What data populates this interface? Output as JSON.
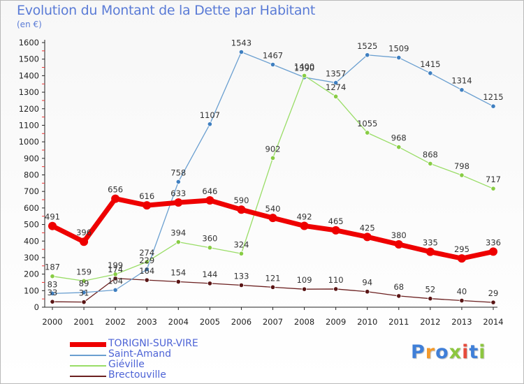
{
  "title": "Evolution du Montant de la Dette par Habitant",
  "unit_label": "(en €)",
  "logo": {
    "text": "Proxiti",
    "colors": [
      "#3f7fd8",
      "#f39a2b",
      "#3f7fd8",
      "#8cc63f",
      "#e64b3c",
      "#3f7fd8",
      "#8cc63f"
    ]
  },
  "chart_data": {
    "type": "line",
    "title": "Evolution du Montant de la Dette par Habitant",
    "ylabel": "(en €)",
    "xlabel": "",
    "x": [
      "2000",
      "2001",
      "2002",
      "2003",
      "2004",
      "2005",
      "2006",
      "2007",
      "2008",
      "2009",
      "2010",
      "2011",
      "2012",
      "2013",
      "2014"
    ],
    "ylim": [
      0,
      1600
    ],
    "yticks": [
      0,
      100,
      200,
      300,
      400,
      500,
      600,
      700,
      800,
      900,
      1000,
      1100,
      1200,
      1300,
      1400,
      1500,
      1600
    ],
    "grid": false,
    "legend_position": "bottom-left",
    "series": [
      {
        "name": "TORIGNI-SUR-VIRE",
        "color": "#ee0000",
        "values": [
          491,
          396,
          656,
          616,
          633,
          646,
          590,
          540,
          492,
          465,
          425,
          380,
          335,
          295,
          336
        ]
      },
      {
        "name": "Saint-Amand",
        "color": "#6a9fd0",
        "values": [
          83,
          89,
          104,
          229,
          758,
          1107,
          1543,
          1467,
          1390,
          1357,
          1525,
          1509,
          1415,
          1314,
          1215
        ]
      },
      {
        "name": "Giéville",
        "color": "#99dd66",
        "values": [
          187,
          159,
          199,
          274,
          394,
          360,
          324,
          902,
          1400,
          1274,
          1055,
          968,
          868,
          798,
          717
        ]
      },
      {
        "name": "Brectouville",
        "color": "#6b1f1f",
        "values": [
          33,
          31,
          174,
          164,
          154,
          144,
          133,
          121,
          109,
          110,
          94,
          68,
          52,
          40,
          29
        ]
      }
    ]
  }
}
